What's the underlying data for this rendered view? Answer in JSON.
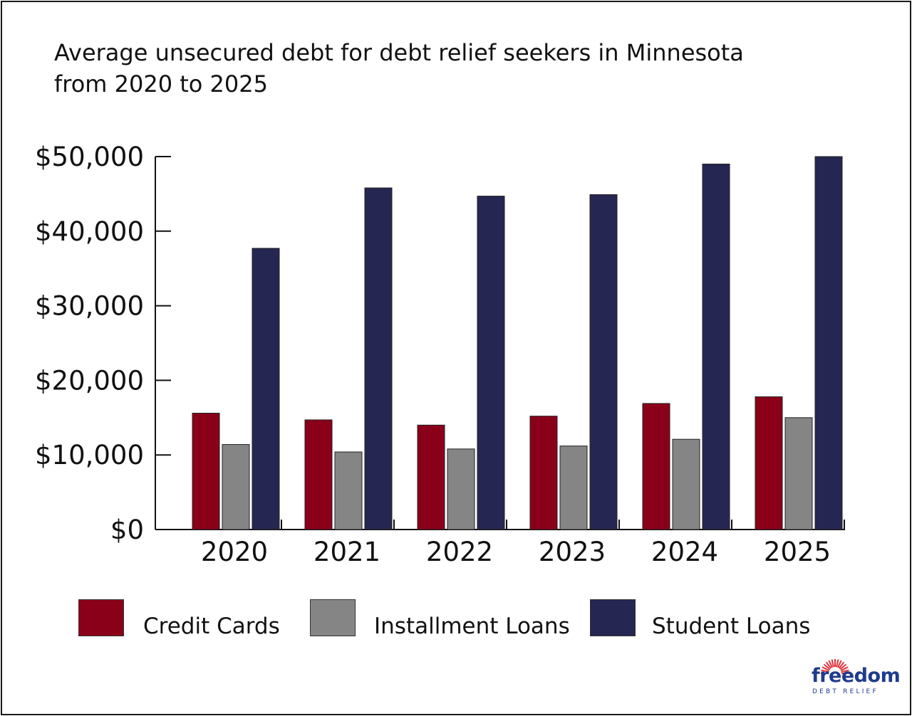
{
  "title_lines": [
    "Average unsecured debt for debt relief seekers in Minnesota",
    "from 2020 to 2025"
  ],
  "chart_data": {
    "type": "bar",
    "title": "Average unsecured debt for debt relief seekers in Minnesota from 2020 to 2025",
    "xlabel": "",
    "ylabel": "",
    "categories": [
      "2020",
      "2021",
      "2022",
      "2023",
      "2024",
      "2025"
    ],
    "series": [
      {
        "name": "Credit Cards",
        "color": "#8b0019",
        "values": [
          15600,
          14700,
          14000,
          15200,
          16900,
          17800
        ]
      },
      {
        "name": "Installment Loans",
        "color": "#858585",
        "values": [
          11400,
          10400,
          10800,
          11200,
          12100,
          15000
        ]
      },
      {
        "name": "Student Loans",
        "color": "#262652",
        "values": [
          37700,
          45800,
          44700,
          44900,
          49000,
          50000
        ]
      }
    ],
    "ylim": [
      0,
      50000
    ],
    "yticks": [
      0,
      10000,
      20000,
      30000,
      40000,
      50000
    ],
    "ytick_labels": [
      "$0",
      "$10,000",
      "$20,000",
      "$30,000",
      "$40,000",
      "$50,000"
    ],
    "grid": false,
    "legend_position": "bottom"
  },
  "logo": {
    "word": "freedom",
    "sub": "DEBT RELIEF",
    "color": "#1f3b8c",
    "ray_color": "#e2333b"
  }
}
